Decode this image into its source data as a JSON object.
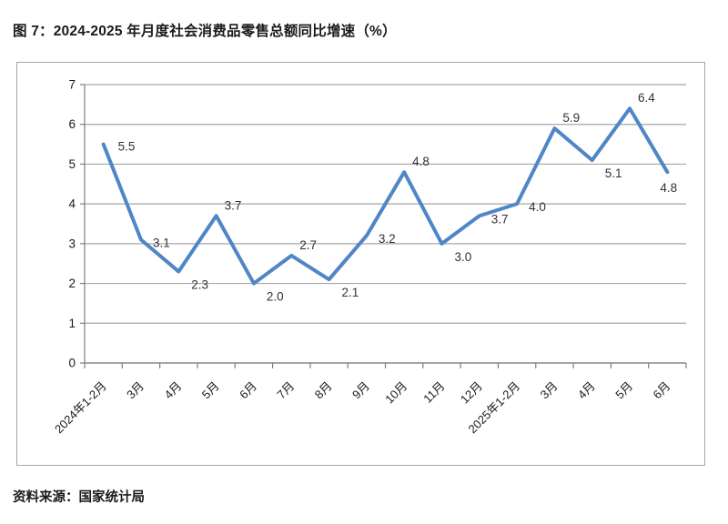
{
  "page": {
    "title": "图 7：2024-2025 年月度社会消费品零售总额同比增速（%）",
    "source": "资料来源：国家统计局"
  },
  "colors": {
    "line": "#4f86c6",
    "grid": "#a6a6a6",
    "axis": "#808080",
    "data_label": "#333333",
    "tick_label": "#1a1a1a",
    "frame_border": "#a6a6a6"
  },
  "chart_data": {
    "type": "line",
    "title": "图 7：2024-2025 年月度社会消费品零售总额同比增速（%）",
    "source": "资料来源：国家统计局",
    "categories": [
      "2024年1-2月",
      "3月",
      "4月",
      "5月",
      "6月",
      "7月",
      "8月",
      "9月",
      "10月",
      "11月",
      "12月",
      "2025年1-2月",
      "3月",
      "4月",
      "5月",
      "6月"
    ],
    "values": [
      5.5,
      3.1,
      2.3,
      3.7,
      2.0,
      2.7,
      2.1,
      3.2,
      4.8,
      3.0,
      3.7,
      4.0,
      5.9,
      5.1,
      6.4,
      4.8
    ],
    "xlabel": "",
    "ylabel": "",
    "ylim": [
      0,
      7
    ],
    "yticks": [
      0,
      1,
      2,
      3,
      4,
      5,
      6,
      7
    ],
    "grid": true,
    "legend_position": "none",
    "data_labels": true,
    "value_decimals": 1
  }
}
